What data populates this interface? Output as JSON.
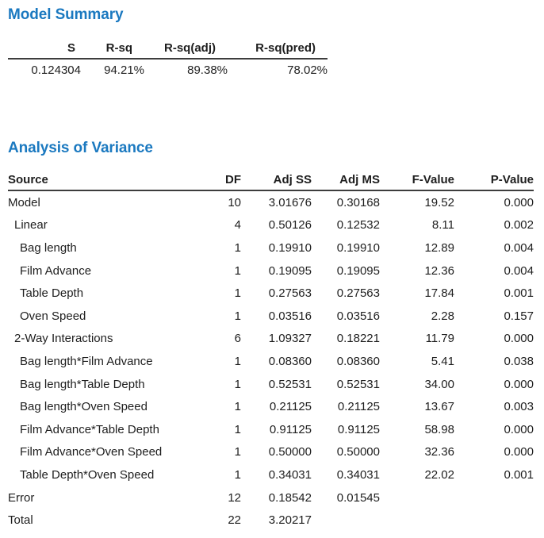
{
  "colors": {
    "title_blue": "#1b79c0",
    "text": "#1e1e1e",
    "rule": "#3d3d3d"
  },
  "model_summary": {
    "title": "Model Summary",
    "columns": [
      "S",
      "R-sq",
      "R-sq(adj)",
      "R-sq(pred)"
    ],
    "values": [
      "0.124304",
      "94.21%",
      "89.38%",
      "78.02%"
    ]
  },
  "anova": {
    "title": "Analysis of Variance",
    "columns": [
      "Source",
      "DF",
      "Adj SS",
      "Adj MS",
      "F-Value",
      "P-Value"
    ],
    "rows": [
      {
        "source": "Model",
        "indent": 0,
        "df": "10",
        "adj_ss": "3.01676",
        "adj_ms": "0.30168",
        "f": "19.52",
        "p": "0.000"
      },
      {
        "source": "Linear",
        "indent": 1,
        "df": "4",
        "adj_ss": "0.50126",
        "adj_ms": "0.12532",
        "f": "8.11",
        "p": "0.002"
      },
      {
        "source": "Bag length",
        "indent": 2,
        "df": "1",
        "adj_ss": "0.19910",
        "adj_ms": "0.19910",
        "f": "12.89",
        "p": "0.004"
      },
      {
        "source": "Film Advance",
        "indent": 2,
        "df": "1",
        "adj_ss": "0.19095",
        "adj_ms": "0.19095",
        "f": "12.36",
        "p": "0.004"
      },
      {
        "source": "Table Depth",
        "indent": 2,
        "df": "1",
        "adj_ss": "0.27563",
        "adj_ms": "0.27563",
        "f": "17.84",
        "p": "0.001"
      },
      {
        "source": "Oven Speed",
        "indent": 2,
        "df": "1",
        "adj_ss": "0.03516",
        "adj_ms": "0.03516",
        "f": "2.28",
        "p": "0.157"
      },
      {
        "source": "2-Way Interactions",
        "indent": 1,
        "df": "6",
        "adj_ss": "1.09327",
        "adj_ms": "0.18221",
        "f": "11.79",
        "p": "0.000"
      },
      {
        "source": "Bag length*Film Advance",
        "indent": 2,
        "df": "1",
        "adj_ss": "0.08360",
        "adj_ms": "0.08360",
        "f": "5.41",
        "p": "0.038"
      },
      {
        "source": "Bag length*Table Depth",
        "indent": 2,
        "df": "1",
        "adj_ss": "0.52531",
        "adj_ms": "0.52531",
        "f": "34.00",
        "p": "0.000"
      },
      {
        "source": "Bag length*Oven Speed",
        "indent": 2,
        "df": "1",
        "adj_ss": "0.21125",
        "adj_ms": "0.21125",
        "f": "13.67",
        "p": "0.003"
      },
      {
        "source": "Film Advance*Table Depth",
        "indent": 2,
        "df": "1",
        "adj_ss": "0.91125",
        "adj_ms": "0.91125",
        "f": "58.98",
        "p": "0.000"
      },
      {
        "source": "Film Advance*Oven Speed",
        "indent": 2,
        "df": "1",
        "adj_ss": "0.50000",
        "adj_ms": "0.50000",
        "f": "32.36",
        "p": "0.000"
      },
      {
        "source": "Table Depth*Oven Speed",
        "indent": 2,
        "df": "1",
        "adj_ss": "0.34031",
        "adj_ms": "0.34031",
        "f": "22.02",
        "p": "0.001"
      },
      {
        "source": "Error",
        "indent": 0,
        "df": "12",
        "adj_ss": "0.18542",
        "adj_ms": "0.01545",
        "f": "",
        "p": ""
      },
      {
        "source": "Total",
        "indent": 0,
        "df": "22",
        "adj_ss": "3.20217",
        "adj_ms": "",
        "f": "",
        "p": ""
      }
    ]
  }
}
